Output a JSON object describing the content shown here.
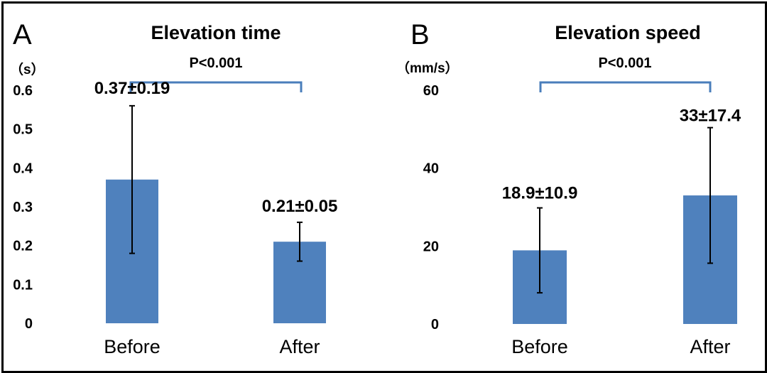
{
  "chart_data": [
    {
      "type": "bar",
      "panel": "A",
      "title": "Elevation time",
      "ylabel": "（s）",
      "significance": "P<0.001",
      "categories": [
        "Before",
        "After"
      ],
      "values": [
        0.37,
        0.21
      ],
      "errors": [
        0.19,
        0.05
      ],
      "data_labels": [
        "0.37±0.19",
        "0.21±0.05"
      ],
      "ylim": [
        0,
        0.6
      ],
      "yticks": [
        0,
        0.1,
        0.2,
        0.3,
        0.4,
        0.5,
        0.6
      ],
      "ytick_labels": [
        "0",
        "0.1",
        "0.2",
        "0.3",
        "0.4",
        "0.5",
        "0.6"
      ],
      "bar_color": "#4f81bd",
      "bracket_color": "#4a7ebb",
      "grid": false
    },
    {
      "type": "bar",
      "panel": "B",
      "title": "Elevation speed",
      "ylabel": "（mm/s）",
      "significance": "P<0.001",
      "categories": [
        "Before",
        "After"
      ],
      "values": [
        18.9,
        33
      ],
      "errors": [
        10.9,
        17.4
      ],
      "data_labels": [
        "18.9±10.9",
        "33±17.4"
      ],
      "ylim": [
        0,
        60
      ],
      "yticks": [
        0,
        20,
        40,
        60
      ],
      "ytick_labels": [
        "0",
        "20",
        "40",
        "60"
      ],
      "bar_color": "#4f81bd",
      "bracket_color": "#4a7ebb",
      "grid": false
    }
  ]
}
